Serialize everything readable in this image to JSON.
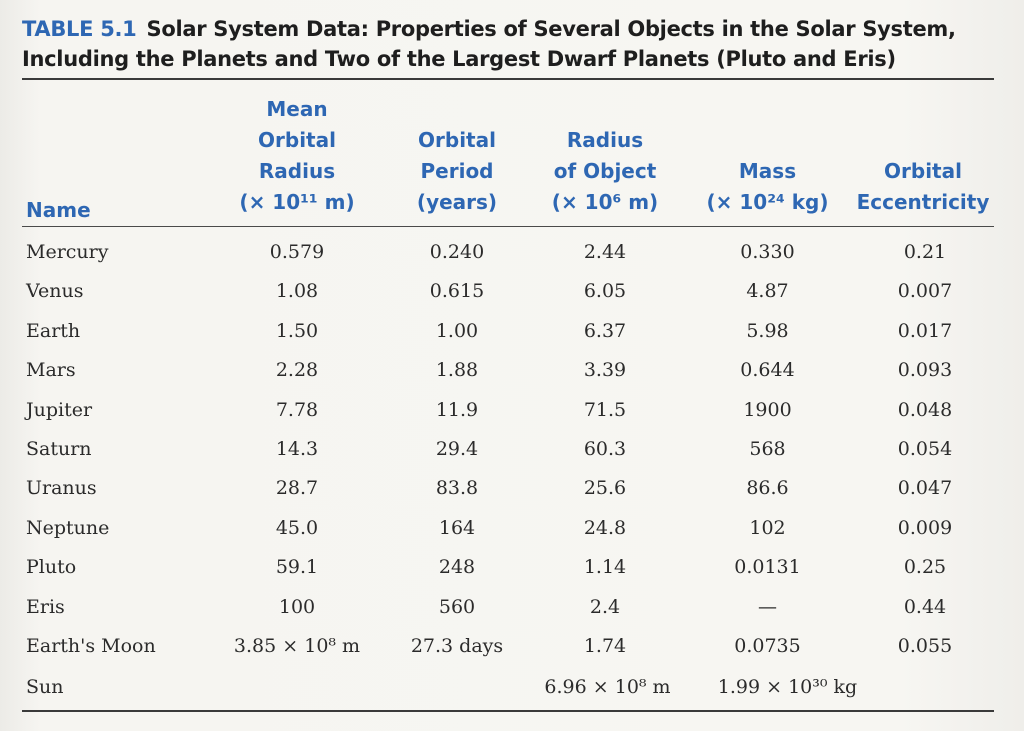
{
  "caption": {
    "label": "TABLE 5.1",
    "text": "Solar System Data: Properties of Several Objects in the Solar System, Including the Planets and Two of the Largest Dwarf Planets (Pluto and Eris)"
  },
  "headers": {
    "name": "Name",
    "orbital_radius": "Mean\nOrbital\nRadius\n(× 10¹¹ m)",
    "orbital_period": "Orbital\nPeriod\n(years)",
    "object_radius": "Radius\nof Object\n(× 10⁶ m)",
    "mass": "Mass\n(× 10²⁴ kg)",
    "eccentricity": "Orbital\nEccentricity"
  },
  "rows": [
    {
      "name": "Mercury",
      "radius": "0.579",
      "period": "0.240",
      "obj_radius": "2.44",
      "mass": "0.330",
      "ecc": "0.21"
    },
    {
      "name": "Venus",
      "radius": "1.08",
      "period": "0.615",
      "obj_radius": "6.05",
      "mass": "4.87",
      "ecc": "0.007"
    },
    {
      "name": "Earth",
      "radius": "1.50",
      "period": "1.00",
      "obj_radius": "6.37",
      "mass": "5.98",
      "ecc": "0.017"
    },
    {
      "name": "Mars",
      "radius": "2.28",
      "period": "1.88",
      "obj_radius": "3.39",
      "mass": "0.644",
      "ecc": "0.093"
    },
    {
      "name": "Jupiter",
      "radius": "7.78",
      "period": "11.9",
      "obj_radius": "71.5",
      "mass": "1900",
      "ecc": "0.048"
    },
    {
      "name": "Saturn",
      "radius": "14.3",
      "period": "29.4",
      "obj_radius": "60.3",
      "mass": "568",
      "ecc": "0.054"
    },
    {
      "name": "Uranus",
      "radius": "28.7",
      "period": "83.8",
      "obj_radius": "25.6",
      "mass": "86.6",
      "ecc": "0.047"
    },
    {
      "name": "Neptune",
      "radius": "45.0",
      "period": "164",
      "obj_radius": "24.8",
      "mass": "102",
      "ecc": "0.009"
    },
    {
      "name": "Pluto",
      "radius": "59.1",
      "period": "248",
      "obj_radius": "1.14",
      "mass": "0.0131",
      "ecc": "0.25"
    },
    {
      "name": "Eris",
      "radius": "100",
      "period": "560",
      "obj_radius": "2.4",
      "mass": "—",
      "ecc": "0.44"
    },
    {
      "name": "Earth's Moon",
      "radius": "3.85 × 10⁸ m",
      "period": "27.3 days",
      "obj_radius": "1.74",
      "mass": "0.0735",
      "ecc": "0.055"
    }
  ],
  "sun": {
    "name": "Sun",
    "obj_radius": "6.96 × 10⁸ m",
    "mass": "1.99 × 10³⁰ kg"
  }
}
